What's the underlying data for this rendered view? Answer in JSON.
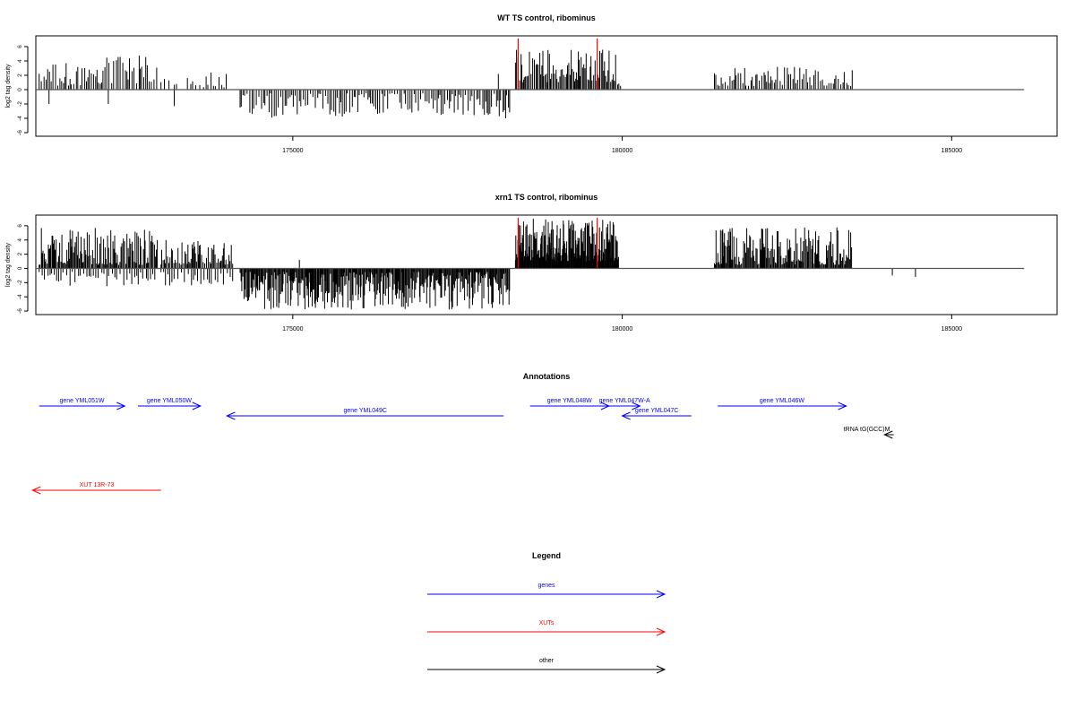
{
  "chart_data": [
    {
      "type": "bar",
      "title": "WT TS control, ribominus",
      "ylabel": "log2 tag density",
      "xlabel": "",
      "xlim": [
        171100,
        186600
      ],
      "ylim": [
        -6.5,
        7.5
      ],
      "x_ticks": [
        175000,
        180000,
        185000
      ],
      "x_tick_labels": [
        "175000",
        "180000",
        "185000"
      ],
      "y_ticks": [
        6,
        4,
        2,
        0,
        -2,
        -4,
        -6
      ],
      "y_tick_labels": [
        "6",
        "4",
        "2",
        "0",
        "-2",
        "-4",
        "-6"
      ],
      "baseline": {
        "x_start": 171100,
        "x_end": 186100
      },
      "markers": [
        178420,
        179620
      ],
      "marker_color": "#ff0000",
      "bar_color": "#000000",
      "series": [
        {
          "x_start": 171150,
          "x_end": 171800,
          "sign": 1,
          "min": 0.5,
          "max": 3.8,
          "step": 30
        },
        {
          "x_start": 171800,
          "x_end": 172950,
          "sign": 1,
          "min": 0.8,
          "max": 4.8,
          "step": 30
        },
        {
          "x_start": 173000,
          "x_end": 173300,
          "sign": 1,
          "min": 0.5,
          "max": 1.5,
          "step": 60
        },
        {
          "x_start": 173400,
          "x_end": 174000,
          "sign": 1,
          "min": 0.3,
          "max": 2.6,
          "step": 45
        },
        {
          "x_start": 174200,
          "x_end": 178300,
          "sign": -1,
          "min": 0.5,
          "max": 3.9,
          "step": 30
        },
        {
          "x_start": 178380,
          "x_end": 179900,
          "sign": 1,
          "min": 1.0,
          "max": 5.6,
          "step": 18
        },
        {
          "x_start": 179900,
          "x_end": 179980,
          "sign": 1,
          "min": 0.5,
          "max": 1.5,
          "step": 25
        },
        {
          "x_start": 181400,
          "x_end": 183500,
          "sign": 1,
          "min": 0.5,
          "max": 3.3,
          "step": 30
        }
      ],
      "spikes": [
        {
          "x": 171300,
          "y": -2.0
        },
        {
          "x": 172200,
          "y": -2.0
        },
        {
          "x": 173200,
          "y": -2.3
        },
        {
          "x": 178230,
          "y": -4.0
        },
        {
          "x": 178120,
          "y": 2.2
        }
      ]
    },
    {
      "type": "bar",
      "title": "xrn1 TS control, ribominus",
      "ylabel": "log2 tag density",
      "xlabel": "",
      "xlim": [
        171100,
        186600
      ],
      "ylim": [
        -6.5,
        7.5
      ],
      "x_ticks": [
        175000,
        180000,
        185000
      ],
      "x_tick_labels": [
        "175000",
        "180000",
        "185000"
      ],
      "y_ticks": [
        6,
        4,
        2,
        0,
        -2,
        -4,
        -6
      ],
      "y_tick_labels": [
        "6",
        "4",
        "2",
        "0",
        "-2",
        "-4",
        "-6"
      ],
      "baseline": {
        "x_start": 171100,
        "x_end": 186100
      },
      "markers": [
        178420,
        179620
      ],
      "marker_color": "#ff0000",
      "bar_color": "#000000",
      "series": [
        {
          "x_start": 171150,
          "x_end": 172950,
          "sign": 1,
          "min": 0.5,
          "max": 5.8,
          "step": 15
        },
        {
          "x_start": 171150,
          "x_end": 172950,
          "sign": -1,
          "min": 0.5,
          "max": 2.5,
          "step": 40
        },
        {
          "x_start": 173000,
          "x_end": 174100,
          "sign": 1,
          "min": 0.5,
          "max": 4.0,
          "step": 18
        },
        {
          "x_start": 173000,
          "x_end": 174100,
          "sign": -1,
          "min": 0.5,
          "max": 2.5,
          "step": 45
        },
        {
          "x_start": 174200,
          "x_end": 178300,
          "sign": -1,
          "min": 0.5,
          "max": 5.8,
          "step": 12
        },
        {
          "x_start": 178380,
          "x_end": 179950,
          "sign": 1,
          "min": 1.0,
          "max": 7.0,
          "step": 8
        },
        {
          "x_start": 181400,
          "x_end": 183500,
          "sign": 1,
          "min": 0.5,
          "max": 5.8,
          "step": 14
        }
      ],
      "spikes": [
        {
          "x": 175100,
          "y": 1.2
        },
        {
          "x": 184100,
          "y": -1.0
        },
        {
          "x": 184450,
          "y": -1.2
        }
      ]
    }
  ],
  "annotations": {
    "title": "Annotations",
    "genes": [
      {
        "label": "gene YML051W",
        "start": 171150,
        "end": 172450,
        "strand": "+",
        "row": 0,
        "color": "#0000ff"
      },
      {
        "label": "gene YML050W",
        "start": 172650,
        "end": 173600,
        "strand": "+",
        "row": 0,
        "color": "#0000ff"
      },
      {
        "label": "gene YML049C",
        "start": 174000,
        "end": 178200,
        "strand": "-",
        "row": 1,
        "color": "#0000ff"
      },
      {
        "label": "gene YML048W",
        "start": 178600,
        "end": 179800,
        "strand": "+",
        "row": 0,
        "color": "#0000ff"
      },
      {
        "label": "gene YML047W-A",
        "start": 179800,
        "end": 180270,
        "strand": "+",
        "row": 0,
        "color": "#0000ff"
      },
      {
        "label": "gene YML047C",
        "start": 180000,
        "end": 181050,
        "strand": "-",
        "row": 1,
        "color": "#0000ff"
      },
      {
        "label": "gene YML046W",
        "start": 181450,
        "end": 183400,
        "strand": "+",
        "row": 0,
        "color": "#0000ff"
      },
      {
        "label": "tRNA tG(GCC)M",
        "start": 183980,
        "end": 184120,
        "strand": "-",
        "row": 2,
        "color": "#000000"
      },
      {
        "label": "XUT 13R-73",
        "start": 171050,
        "end": 173000,
        "strand": "-",
        "row": 3,
        "color": "#ff0000"
      }
    ]
  },
  "legend": {
    "title": "Legend",
    "items": [
      {
        "label": "genes",
        "color": "#0000ff"
      },
      {
        "label": "XUTs",
        "color": "#ff0000"
      },
      {
        "label": "other",
        "color": "#000000"
      }
    ]
  }
}
